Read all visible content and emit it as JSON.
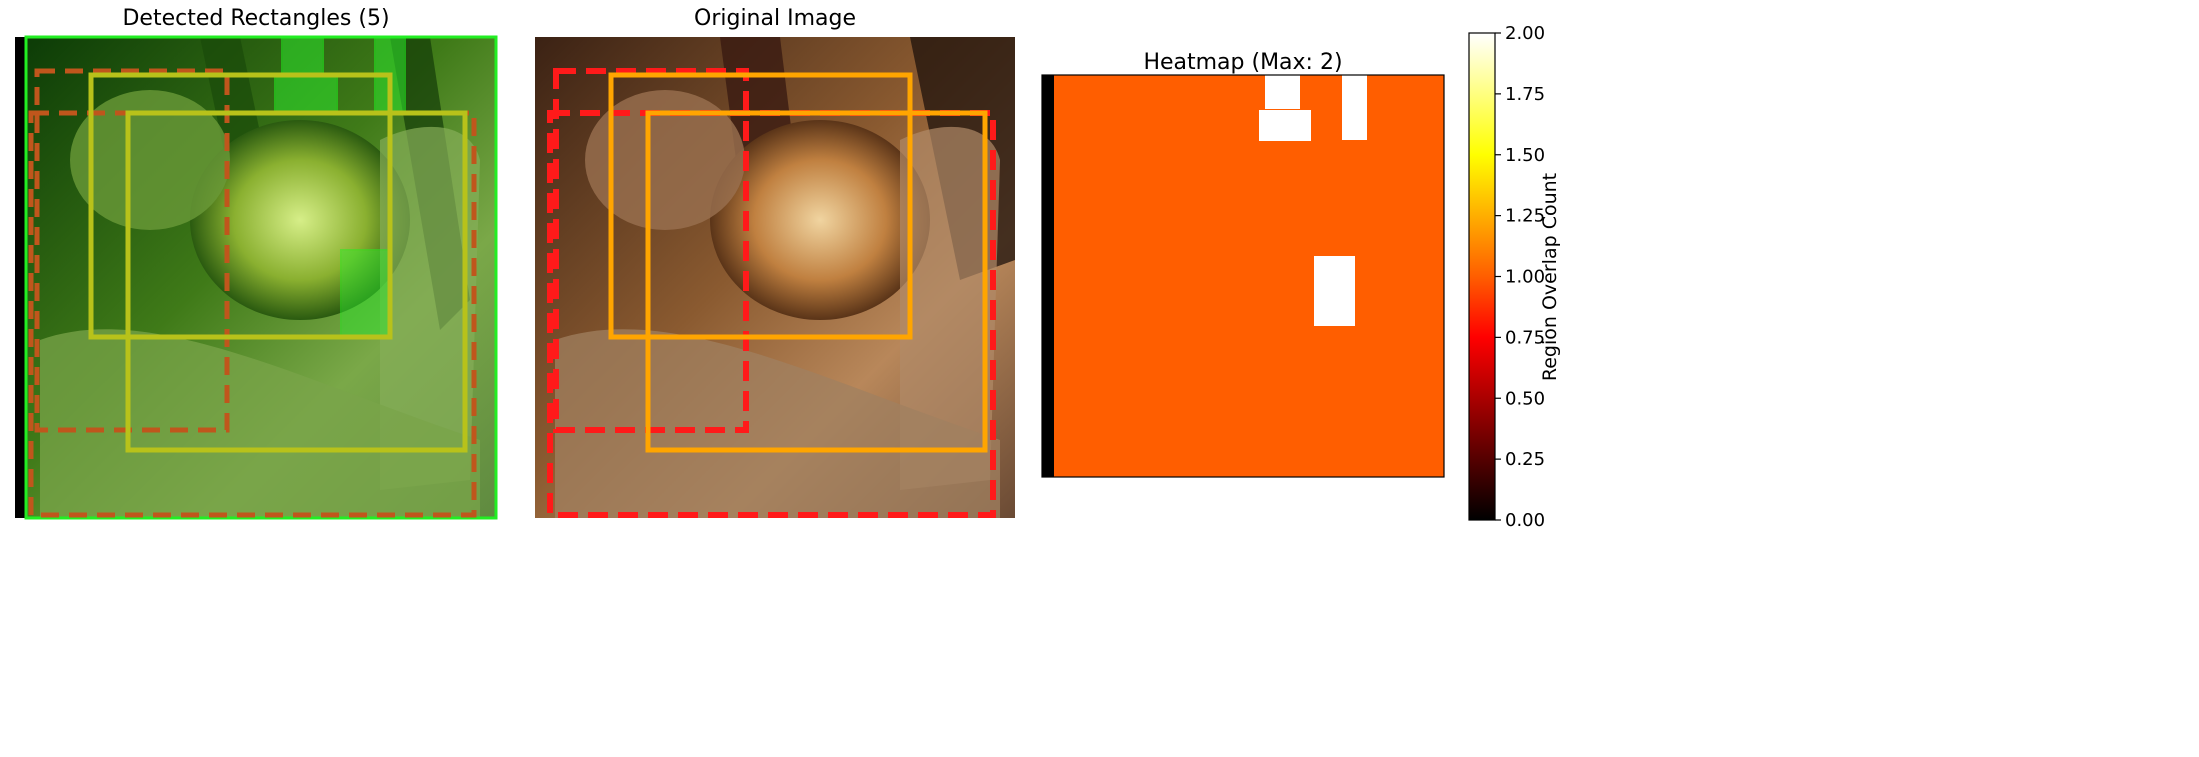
{
  "panels": {
    "detected": {
      "title": "Detected Rectangles (5)"
    },
    "original": {
      "title": "Original Image"
    },
    "heatmap": {
      "title": "Heatmap (Max: 2)"
    }
  },
  "colors": {
    "green_tint": "#2f7a10",
    "lion_light": "#e8c48a",
    "lion_mid": "#a8703a",
    "lion_dark": "#4a2e18",
    "bark": "#2a1810",
    "box_dashed_red": "#ff1a1a",
    "box_dashed_brown": "#c0561c",
    "box_solid_orange": "#ffa500",
    "box_solid_olive": "#b8c21a",
    "box_green": "#22ee22",
    "heat_one": "#ff5e00",
    "heat_two": "#ffffff",
    "heat_zero": "#000000"
  },
  "chart_data": {
    "type": "heatmap",
    "title": "Heatmap (Max: 2)",
    "value_range": [
      0,
      2
    ],
    "colormap": "hot",
    "background_value": 1,
    "overlap_regions_value": 2,
    "overlap_region_count": 3,
    "detected_rectangles": 5,
    "colorbar": {
      "label": "Region Overlap Count",
      "ticks": [
        "0.00",
        "0.25",
        "0.50",
        "0.75",
        "1.00",
        "1.25",
        "1.50",
        "1.75",
        "2.00"
      ],
      "tick_values": [
        0,
        0.25,
        0.5,
        0.75,
        1.0,
        1.25,
        1.5,
        1.75,
        2.0
      ],
      "min": 0,
      "max": 2
    }
  }
}
